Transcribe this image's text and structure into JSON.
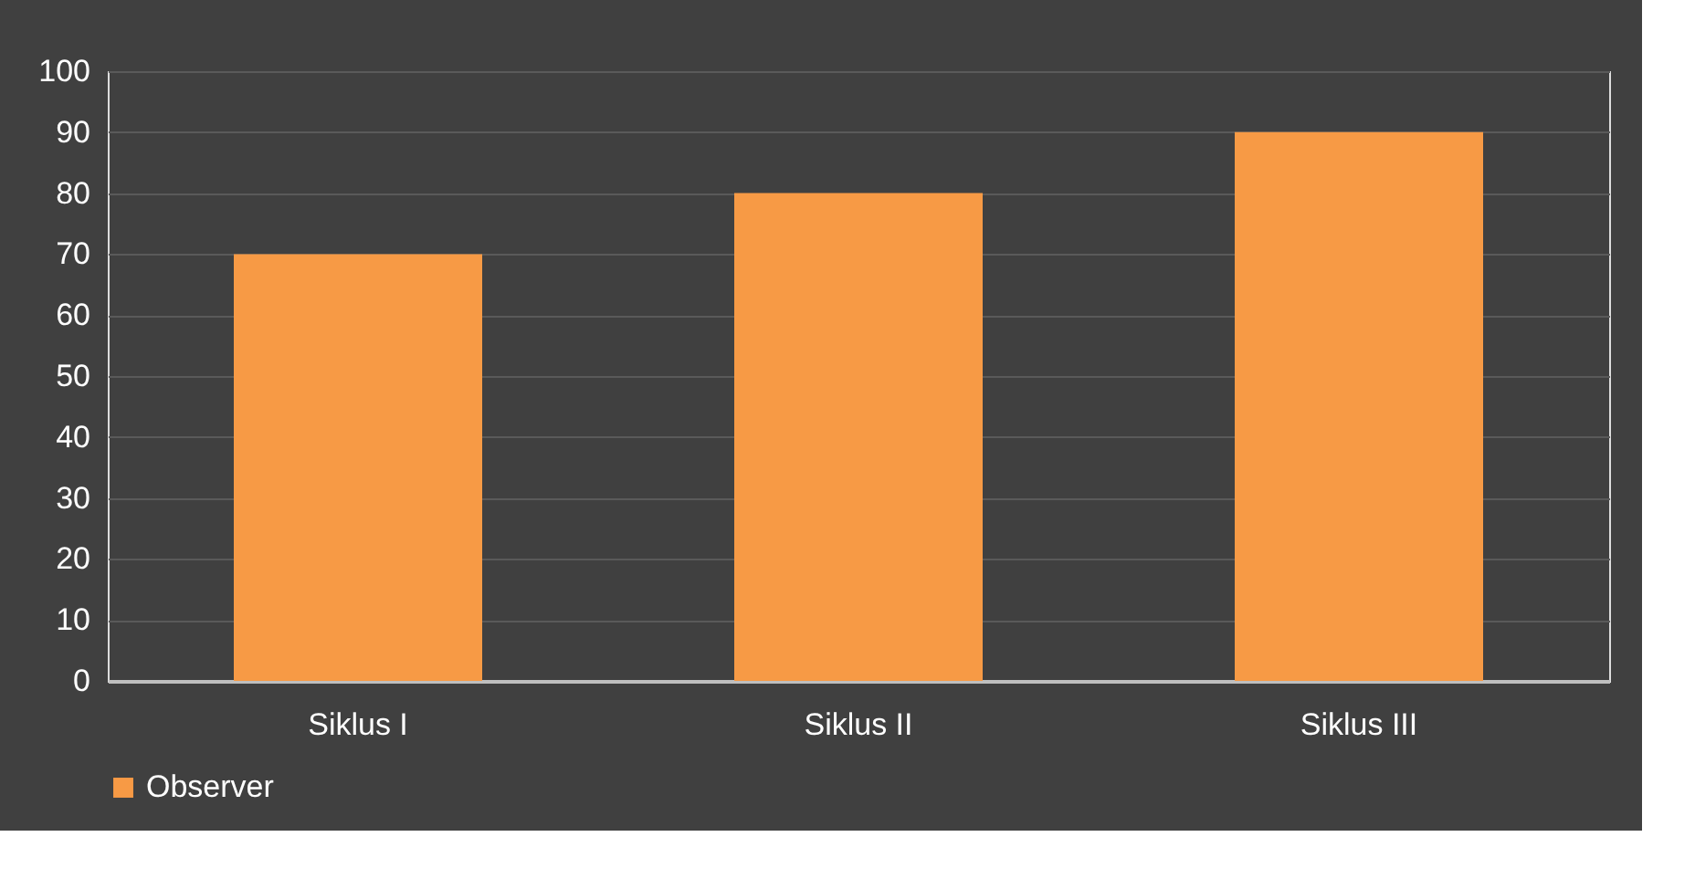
{
  "chart_data": {
    "type": "bar",
    "categories": [
      "Siklus I",
      "Siklus II",
      "Siklus III"
    ],
    "series": [
      {
        "name": "Observer",
        "color": "#f79a45",
        "values": [
          70,
          80,
          90
        ]
      }
    ],
    "ylim": [
      0,
      100
    ],
    "yticks": [
      0,
      10,
      20,
      30,
      40,
      50,
      60,
      70,
      80,
      90,
      100
    ],
    "grid": "y",
    "legend": "bottom"
  }
}
